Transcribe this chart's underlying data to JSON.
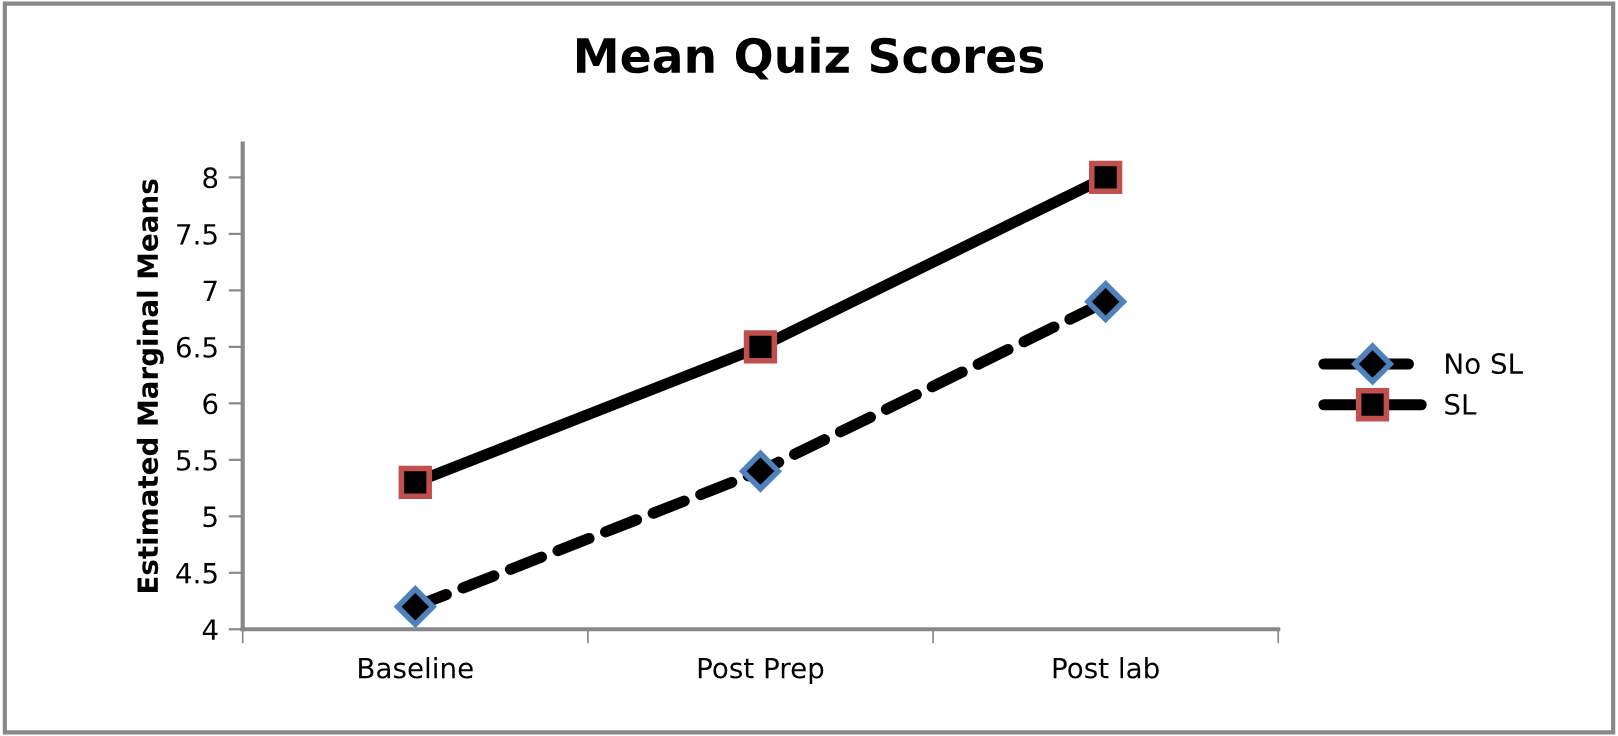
{
  "chart_data": {
    "type": "line",
    "title": "Mean Quiz Scores",
    "ylabel": "Estimated Marginal Means",
    "categories": [
      "Baseline",
      "Post Prep",
      "Post lab"
    ],
    "series": [
      {
        "name": "No SL",
        "color": "#000000",
        "values": [
          4.2,
          5.4,
          6.9
        ],
        "marker": "diamond",
        "line_style": "dashed"
      },
      {
        "name": "SL",
        "color": "#000000",
        "values": [
          5.3,
          6.5,
          8.0
        ],
        "marker": "square",
        "line_style": "solid"
      }
    ],
    "ylim": [
      4,
      8.3
    ],
    "yticks": [
      4,
      4.5,
      5,
      5.5,
      6,
      6.5,
      7,
      7.5,
      8
    ],
    "grid": false,
    "legend": "right"
  }
}
